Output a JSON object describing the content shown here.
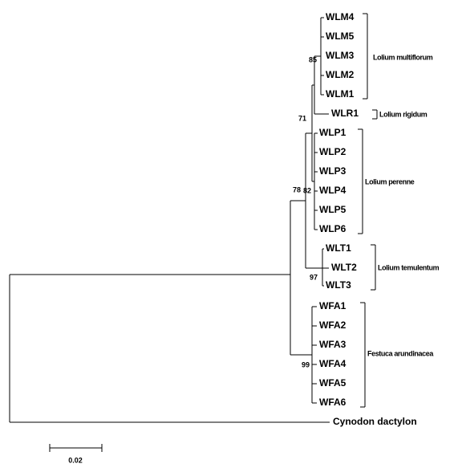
{
  "leaves": [
    "WLM4",
    "WLM5",
    "WLM3",
    "WLM2",
    "WLM1",
    "WLR1",
    "WLP1",
    "WLP2",
    "WLP3",
    "WLP4",
    "WLP5",
    "WLP6",
    "WLT1",
    "WLT2",
    "WLT3",
    "WFA1",
    "WFA2",
    "WFA3",
    "WFA4",
    "WFA5",
    "WFA6",
    "Cynodon dactylon"
  ],
  "bootstrap": [
    85,
    71,
    82,
    78,
    97,
    99
  ],
  "clades": [
    "Lolium multiflorum",
    "Lolium rigidum",
    "Lolium perenne",
    "Lolium temulentum",
    "Festuca arundinacea"
  ],
  "scale_bar": "0.02"
}
